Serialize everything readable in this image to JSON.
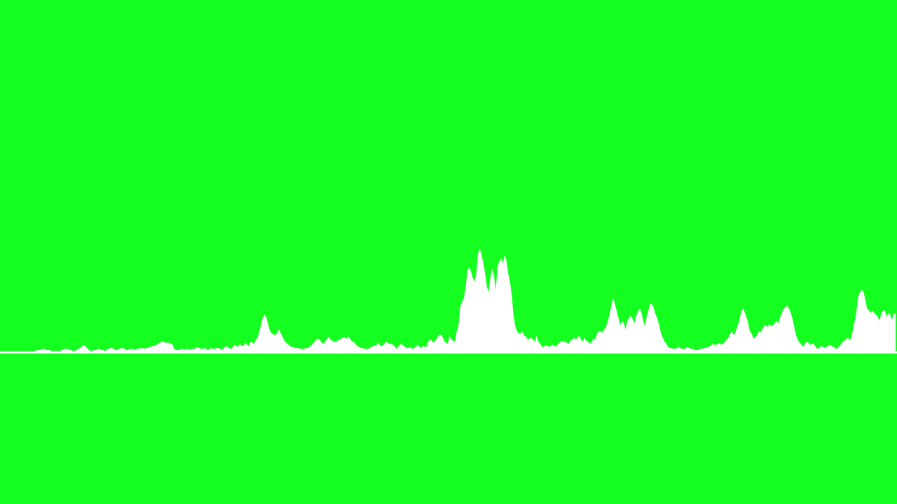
{
  "background_color": "#14ff1f",
  "waveform": {
    "color": "#ffffff",
    "style": "audio spectrum area above a horizontal baseline",
    "amplitudes": [
      0.0,
      0.0,
      0.0,
      0.0,
      0.0,
      0.0,
      0.0,
      0.0,
      0.0,
      0.0,
      0.0,
      0.0,
      0.0,
      0.0,
      0.0,
      0.0,
      0.0,
      0.0,
      0.0,
      0.01,
      0.01,
      0.02,
      0.02,
      0.02,
      0.03,
      0.03,
      0.02,
      0.02,
      0.02,
      0.01,
      0.01,
      0.01,
      0.01,
      0.01,
      0.01,
      0.02,
      0.03,
      0.03,
      0.03,
      0.02,
      0.02,
      0.01,
      0.01,
      0.02,
      0.03,
      0.04,
      0.05,
      0.07,
      0.06,
      0.04,
      0.02,
      0.01,
      0.01,
      0.02,
      0.02,
      0.03,
      0.03,
      0.02,
      0.02,
      0.01,
      0.02,
      0.03,
      0.04,
      0.04,
      0.03,
      0.02,
      0.02,
      0.03,
      0.04,
      0.04,
      0.03,
      0.02,
      0.02,
      0.03,
      0.03,
      0.03,
      0.02,
      0.03,
      0.03,
      0.04,
      0.04,
      0.03,
      0.04,
      0.04,
      0.05,
      0.05,
      0.06,
      0.06,
      0.07,
      0.08,
      0.09,
      0.1,
      0.1,
      0.09,
      0.09,
      0.09,
      0.08,
      0.08,
      0.03,
      0.02,
      0.02,
      0.02,
      0.03,
      0.03,
      0.02,
      0.03,
      0.03,
      0.02,
      0.03,
      0.03,
      0.04,
      0.05,
      0.04,
      0.03,
      0.03,
      0.04,
      0.03,
      0.02,
      0.03,
      0.04,
      0.03,
      0.03,
      0.04,
      0.04,
      0.03,
      0.02,
      0.04,
      0.06,
      0.05,
      0.04,
      0.03,
      0.05,
      0.07,
      0.06,
      0.05,
      0.08,
      0.06,
      0.06,
      0.09,
      0.07,
      0.06,
      0.1,
      0.09,
      0.08,
      0.12,
      0.14,
      0.2,
      0.27,
      0.34,
      0.36,
      0.33,
      0.26,
      0.2,
      0.18,
      0.17,
      0.16,
      0.19,
      0.22,
      0.18,
      0.15,
      0.11,
      0.09,
      0.08,
      0.06,
      0.05,
      0.05,
      0.04,
      0.04,
      0.04,
      0.03,
      0.03,
      0.03,
      0.04,
      0.04,
      0.05,
      0.06,
      0.08,
      0.1,
      0.12,
      0.13,
      0.12,
      0.09,
      0.08,
      0.1,
      0.13,
      0.15,
      0.12,
      0.11,
      0.1,
      0.1,
      0.11,
      0.12,
      0.13,
      0.14,
      0.14,
      0.13,
      0.15,
      0.13,
      0.1,
      0.1,
      0.08,
      0.06,
      0.05,
      0.04,
      0.04,
      0.03,
      0.03,
      0.03,
      0.04,
      0.05,
      0.06,
      0.06,
      0.07,
      0.09,
      0.06,
      0.06,
      0.07,
      0.1,
      0.09,
      0.08,
      0.08,
      0.07,
      0.06,
      0.03,
      0.05,
      0.07,
      0.08,
      0.06,
      0.05,
      0.04,
      0.04,
      0.05,
      0.03,
      0.04,
      0.05,
      0.07,
      0.05,
      0.04,
      0.06,
      0.05,
      0.05,
      0.1,
      0.12,
      0.11,
      0.09,
      0.11,
      0.14,
      0.16,
      0.17,
      0.15,
      0.11,
      0.09,
      0.08,
      0.16,
      0.12,
      0.11,
      0.1,
      0.2,
      0.25,
      0.44,
      0.48,
      0.52,
      0.62,
      0.78,
      0.82,
      0.78,
      0.72,
      0.68,
      0.75,
      0.95,
      1.0,
      0.94,
      0.86,
      0.76,
      0.63,
      0.58,
      0.72,
      0.8,
      0.74,
      0.6,
      0.82,
      0.88,
      0.9,
      0.86,
      0.94,
      0.88,
      0.76,
      0.68,
      0.55,
      0.35,
      0.25,
      0.2,
      0.18,
      0.18,
      0.2,
      0.16,
      0.15,
      0.12,
      0.13,
      0.14,
      0.12,
      0.1,
      0.16,
      0.1,
      0.08,
      0.05,
      0.05,
      0.07,
      0.06,
      0.05,
      0.06,
      0.07,
      0.06,
      0.05,
      0.08,
      0.09,
      0.11,
      0.1,
      0.1,
      0.09,
      0.08,
      0.11,
      0.12,
      0.14,
      0.12,
      0.14,
      0.16,
      0.12,
      0.1,
      0.14,
      0.11,
      0.1,
      0.08,
      0.1,
      0.13,
      0.12,
      0.18,
      0.2,
      0.2,
      0.19,
      0.22,
      0.24,
      0.3,
      0.36,
      0.45,
      0.52,
      0.47,
      0.4,
      0.33,
      0.26,
      0.3,
      0.28,
      0.22,
      0.3,
      0.33,
      0.35,
      0.32,
      0.28,
      0.35,
      0.39,
      0.42,
      0.38,
      0.3,
      0.25,
      0.35,
      0.41,
      0.47,
      0.46,
      0.42,
      0.36,
      0.32,
      0.26,
      0.18,
      0.14,
      0.1,
      0.08,
      0.05,
      0.04,
      0.04,
      0.03,
      0.03,
      0.04,
      0.05,
      0.04,
      0.03,
      0.03,
      0.04,
      0.05,
      0.04,
      0.03,
      0.03,
      0.02,
      0.02,
      0.02,
      0.03,
      0.03,
      0.04,
      0.04,
      0.05,
      0.05,
      0.06,
      0.08,
      0.07,
      0.07,
      0.08,
      0.09,
      0.07,
      0.08,
      0.1,
      0.12,
      0.14,
      0.18,
      0.2,
      0.16,
      0.2,
      0.25,
      0.3,
      0.38,
      0.42,
      0.39,
      0.34,
      0.28,
      0.2,
      0.18,
      0.13,
      0.14,
      0.16,
      0.2,
      0.19,
      0.22,
      0.25,
      0.26,
      0.24,
      0.27,
      0.25,
      0.26,
      0.28,
      0.3,
      0.28,
      0.33,
      0.38,
      0.42,
      0.43,
      0.45,
      0.42,
      0.38,
      0.32,
      0.24,
      0.16,
      0.12,
      0.09,
      0.07,
      0.05,
      0.08,
      0.1,
      0.09,
      0.07,
      0.08,
      0.08,
      0.05,
      0.03,
      0.04,
      0.06,
      0.05,
      0.04,
      0.05,
      0.06,
      0.07,
      0.06,
      0.05,
      0.04,
      0.03,
      0.05,
      0.07,
      0.09,
      0.11,
      0.12,
      0.14,
      0.12,
      0.13,
      0.22,
      0.3,
      0.4,
      0.54,
      0.58,
      0.6,
      0.58,
      0.5,
      0.42,
      0.4,
      0.38,
      0.4,
      0.38,
      0.36,
      0.34,
      0.3,
      0.38,
      0.4,
      0.4,
      0.34,
      0.38,
      0.36,
      0.31,
      0.38,
      0.37
    ]
  }
}
